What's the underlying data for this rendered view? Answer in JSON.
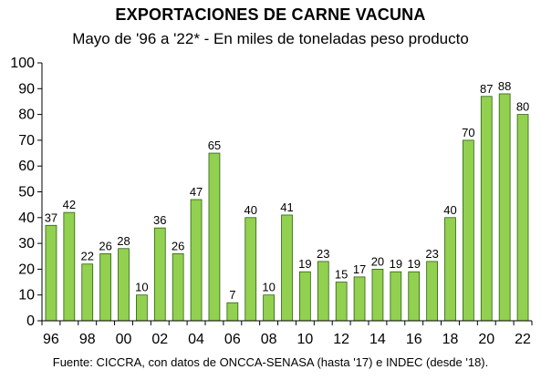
{
  "chart_data": {
    "type": "bar",
    "title": "EXPORTACIONES DE CARNE VACUNA",
    "subtitle": "Mayo de '96 a '22* - En miles de toneladas peso producto",
    "xlabel": "",
    "ylabel": "",
    "ylim": [
      0,
      100
    ],
    "yticks": [
      0,
      10,
      20,
      30,
      40,
      50,
      60,
      70,
      80,
      90,
      100
    ],
    "categories": [
      "96",
      "97",
      "98",
      "99",
      "00",
      "01",
      "02",
      "03",
      "04",
      "05",
      "06",
      "07",
      "08",
      "09",
      "10",
      "11",
      "12",
      "13",
      "14",
      "15",
      "16",
      "17",
      "18",
      "19",
      "20",
      "21",
      "22"
    ],
    "x_tick_labels": [
      "96",
      "98",
      "00",
      "02",
      "04",
      "06",
      "08",
      "10",
      "12",
      "14",
      "16",
      "18",
      "20",
      "22"
    ],
    "values": [
      37,
      42,
      22,
      26,
      28,
      10,
      36,
      26,
      47,
      65,
      7,
      40,
      10,
      41,
      19,
      23,
      15,
      17,
      20,
      19,
      19,
      23,
      40,
      70,
      87,
      88,
      80
    ],
    "bar_color": "#92D050",
    "bar_edge_color": "#2E5E10",
    "grid": false,
    "legend": "none",
    "source": "Fuente: CICCRA, con datos de ONCCA-SENASA (hasta '17) e INDEC (desde '18)."
  }
}
